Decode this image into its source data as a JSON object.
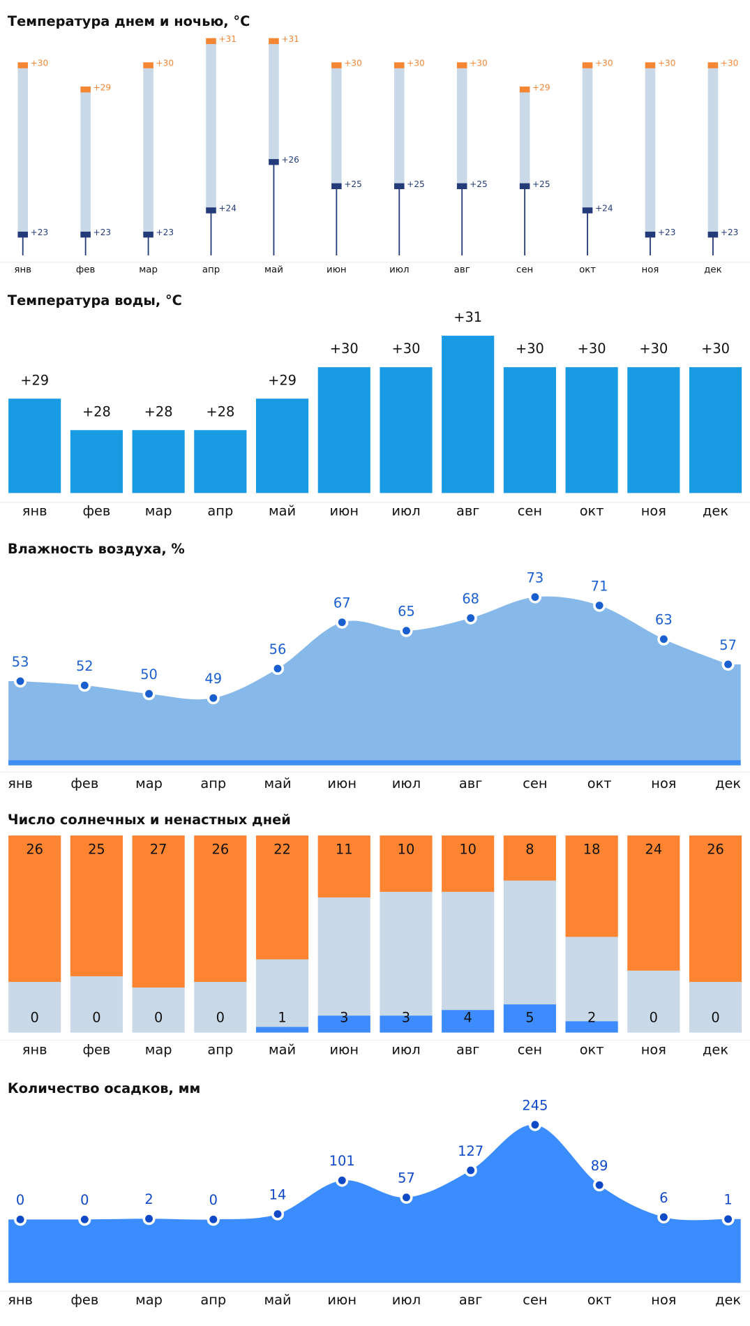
{
  "chart_data": [
    {
      "type": "range",
      "title": "Температура днем и ночью, °C",
      "categories": [
        "янв",
        "фев",
        "мар",
        "апр",
        "май",
        "июн",
        "июл",
        "авг",
        "сен",
        "окт",
        "ноя",
        "дек"
      ],
      "series": [
        {
          "color": "#f58634",
          "values": [
            30,
            29,
            30,
            31,
            31,
            30,
            30,
            30,
            29,
            30,
            30,
            30
          ],
          "value_labels": [
            "+30",
            "+29",
            "+30",
            "+31",
            "+31",
            "+30",
            "+30",
            "+30",
            "+29",
            "+30",
            "+30",
            "+30"
          ]
        },
        {
          "color": "#243b7a",
          "values": [
            23,
            23,
            23,
            24,
            26,
            25,
            25,
            25,
            25,
            24,
            23,
            23
          ],
          "value_labels": [
            "+23",
            "+23",
            "+23",
            "+24",
            "+26",
            "+25",
            "+25",
            "+25",
            "+25",
            "+24",
            "+23",
            "+23"
          ]
        }
      ],
      "ylim": [
        22,
        32
      ]
    },
    {
      "type": "bar",
      "title": "Температура воды, °C",
      "categories": [
        "янв",
        "фев",
        "мар",
        "апр",
        "май",
        "июн",
        "июл",
        "авг",
        "сен",
        "окт",
        "ноя",
        "дек"
      ],
      "values": [
        29,
        28,
        28,
        28,
        29,
        30,
        30,
        31,
        30,
        30,
        30,
        30
      ],
      "value_labels": [
        "+29",
        "+28",
        "+28",
        "+28",
        "+29",
        "+30",
        "+30",
        "+31",
        "+30",
        "+30",
        "+30",
        "+30"
      ],
      "color": "#189be2",
      "ylim": [
        26,
        31
      ]
    },
    {
      "type": "area",
      "title": "Влажность воздуха, %",
      "categories": [
        "янв",
        "фев",
        "мар",
        "апр",
        "май",
        "июн",
        "июл",
        "авг",
        "сен",
        "окт",
        "ноя",
        "дек"
      ],
      "values": [
        53,
        52,
        50,
        49,
        56,
        67,
        65,
        68,
        73,
        71,
        63,
        57
      ],
      "color": "#86b8ea",
      "ylim": [
        33,
        73
      ]
    },
    {
      "type": "stacked_bar",
      "title": "Число солнечных и ненастных дней",
      "categories": [
        "янв",
        "фев",
        "мар",
        "апр",
        "май",
        "июн",
        "июл",
        "авг",
        "сен",
        "окт",
        "ноя",
        "дек"
      ],
      "series": [
        {
          "color": "#ff8431",
          "values": [
            26,
            25,
            27,
            26,
            22,
            11,
            10,
            10,
            8,
            18,
            24,
            26
          ]
        },
        {
          "color": "#3d8bfd",
          "values": [
            0,
            0,
            0,
            0,
            1,
            3,
            3,
            4,
            5,
            2,
            0,
            0
          ]
        }
      ],
      "ylim": [
        0,
        35
      ]
    },
    {
      "type": "area",
      "title": "Количество осадков, мм",
      "categories": [
        "янв",
        "фев",
        "мар",
        "апр",
        "май",
        "июн",
        "июл",
        "авг",
        "сен",
        "окт",
        "ноя",
        "дек"
      ],
      "values": [
        0,
        0,
        2,
        0,
        14,
        101,
        57,
        127,
        245,
        89,
        6,
        1
      ],
      "color": "#3a8cff",
      "ylim": [
        0,
        245
      ]
    }
  ]
}
